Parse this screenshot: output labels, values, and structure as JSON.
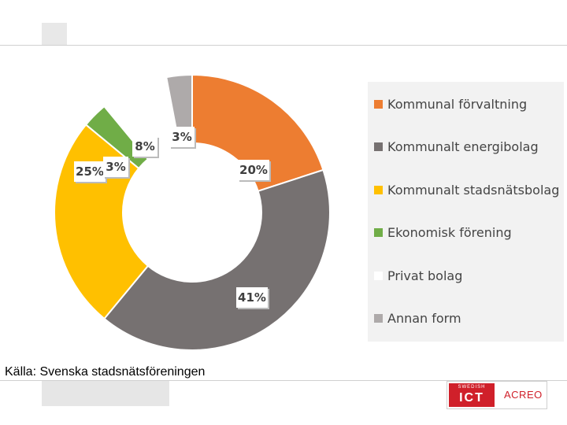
{
  "chart_data": {
    "type": "pie",
    "variant": "donut",
    "title": "",
    "series": [
      {
        "name": "Kommunal förvaltning",
        "value": 20,
        "label": "20%",
        "color": "#ED7D31"
      },
      {
        "name": "Kommunalt energibolag",
        "value": 41,
        "label": "41%",
        "color": "#767171"
      },
      {
        "name": "Kommunalt stadsnätsbolag",
        "value": 25,
        "label": "25%",
        "color": "#FFC000"
      },
      {
        "name": "Ekonomisk förening",
        "value": 3,
        "label": "3%",
        "color": "#70AD47"
      },
      {
        "name": "Privat bolag",
        "value": 8,
        "label": "8%",
        "color": "#FFFFFF"
      },
      {
        "name": "Annan form",
        "value": 3,
        "label": "3%",
        "color": "#AEAAAA"
      }
    ],
    "legend_position": "right"
  },
  "source": "Källa: Svenska stadsnätsföreningen",
  "logo": {
    "small_text": "SWEDISH",
    "big_text": "ICT",
    "name": "ACREO",
    "color": "#D0202A"
  }
}
